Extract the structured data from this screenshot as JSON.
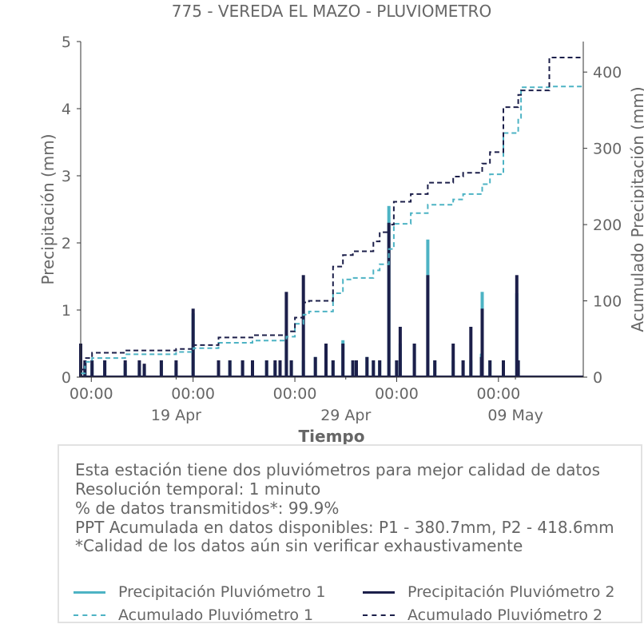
{
  "chart_data": {
    "type": "bar",
    "title": "775 - VEREDA EL MAZO - PLUVIOMETRO",
    "xlabel": "Tiempo",
    "ylabel": "Precipitación (mm)",
    "ylabel_right": "Acumulado Precipitación (mm)",
    "x_range": [
      "2025-04-13T09:00",
      "2025-05-13T00:00"
    ],
    "ylim": [
      0,
      5
    ],
    "ylim_right": [
      0,
      440
    ],
    "y_ticks": [
      0,
      1,
      2,
      3,
      4,
      5
    ],
    "y_ticks_right": [
      0,
      100,
      200,
      300,
      400
    ],
    "x_ticks_major": [
      {
        "x": "2025-04-14T00:00",
        "label": "00:00"
      },
      {
        "x": "2025-04-20T00:00",
        "label": "00:00"
      },
      {
        "x": "2025-04-26T00:00",
        "label": "00:00"
      },
      {
        "x": "2025-05-02T00:00",
        "label": "00:00"
      },
      {
        "x": "2025-05-08T00:00",
        "label": "00:00"
      }
    ],
    "x_ticks_minor": [
      {
        "x": "2025-04-19T00:00",
        "label": "19 Apr"
      },
      {
        "x": "2025-04-29T00:00",
        "label": "29 Apr"
      },
      {
        "x": "2025-05-09T00:00",
        "label": "09 May"
      }
    ],
    "grid": false,
    "legend_position": "bottom",
    "series": [
      {
        "name": "Precipitación Pluviómetro 1",
        "kind": "bar",
        "color": "#4db3c4",
        "x": [
          "2025-04-13T09:00",
          "2025-04-13T15:00",
          "2025-04-14T01:00",
          "2025-04-14T19:00",
          "2025-04-16T00:00",
          "2025-04-16T20:00",
          "2025-04-17T03:00",
          "2025-04-18T03:00",
          "2025-04-19T00:00",
          "2025-04-20T00:00",
          "2025-04-21T12:00",
          "2025-04-22T04:00",
          "2025-04-22T22:00",
          "2025-04-23T12:00",
          "2025-04-24T08:00",
          "2025-04-24T20:00",
          "2025-04-25T03:00",
          "2025-04-25T12:00",
          "2025-04-25T19:00",
          "2025-04-26T12:00",
          "2025-04-27T05:00",
          "2025-04-27T20:00",
          "2025-04-28T06:00",
          "2025-04-28T20:00",
          "2025-04-29T10:00",
          "2025-04-29T15:00",
          "2025-04-30T06:00",
          "2025-04-30T15:00",
          "2025-05-01T00:00",
          "2025-05-01T13:00",
          "2025-05-02T00:00",
          "2025-05-02T05:00",
          "2025-05-03T01:00",
          "2025-05-03T20:00",
          "2025-05-04T06:00",
          "2025-05-05T08:00",
          "2025-05-05T22:00",
          "2025-05-06T09:00",
          "2025-05-07T00:00",
          "2025-05-07T01:00",
          "2025-05-07T12:00",
          "2025-05-08T07:00",
          "2025-05-09T02:00",
          "2025-05-09T04:00"
        ],
        "values": [
          0.3,
          0.2,
          0.2,
          0.25,
          0.2,
          0.2,
          0.15,
          0.25,
          0.2,
          0.95,
          0.25,
          0.25,
          0.25,
          0.25,
          0.25,
          0.2,
          0.2,
          0.7,
          0.25,
          0.25,
          0.3,
          0.5,
          0.25,
          0.55,
          0.25,
          0.25,
          0.3,
          0.25,
          0.25,
          2.55,
          0.25,
          0.5,
          0.5,
          2.05,
          0.25,
          0.25,
          0.25,
          0.25,
          0.35,
          1.27,
          0.25,
          0.25,
          1.25,
          0.25
        ]
      },
      {
        "name": "Precipitación Pluviómetro 2",
        "kind": "bar",
        "color": "#1c1f4a",
        "x": [
          "2025-04-13T09:00",
          "2025-04-13T15:00",
          "2025-04-14T01:00",
          "2025-04-14T19:00",
          "2025-04-16T00:00",
          "2025-04-16T20:00",
          "2025-04-17T03:00",
          "2025-04-18T03:00",
          "2025-04-19T00:00",
          "2025-04-20T00:00",
          "2025-04-21T12:00",
          "2025-04-22T04:00",
          "2025-04-22T22:00",
          "2025-04-23T12:00",
          "2025-04-24T08:00",
          "2025-04-24T20:00",
          "2025-04-25T03:00",
          "2025-04-25T12:00",
          "2025-04-25T19:00",
          "2025-04-26T12:00",
          "2025-04-27T05:00",
          "2025-04-27T20:00",
          "2025-04-28T06:00",
          "2025-04-28T20:00",
          "2025-04-29T10:00",
          "2025-04-29T15:00",
          "2025-04-30T06:00",
          "2025-04-30T15:00",
          "2025-05-01T00:00",
          "2025-05-01T13:00",
          "2025-05-02T00:00",
          "2025-05-02T05:00",
          "2025-05-03T01:00",
          "2025-05-03T20:00",
          "2025-05-04T06:00",
          "2025-05-05T08:00",
          "2025-05-05T22:00",
          "2025-05-06T09:00",
          "2025-05-07T00:00",
          "2025-05-07T01:00",
          "2025-05-07T12:00",
          "2025-05-08T07:00",
          "2025-05-09T02:00",
          "2025-05-09T04:00"
        ],
        "values": [
          0.5,
          0.25,
          0.25,
          0.25,
          0.25,
          0.25,
          0.2,
          0.25,
          0.25,
          1.02,
          0.25,
          0.25,
          0.25,
          0.25,
          0.25,
          0.25,
          0.25,
          1.27,
          0.25,
          1.52,
          0.3,
          0.5,
          0.25,
          0.5,
          0.25,
          0.25,
          0.3,
          0.25,
          0.25,
          2.3,
          0.25,
          0.75,
          0.5,
          1.52,
          0.25,
          0.5,
          0.25,
          0.75,
          0.3,
          1.02,
          0.25,
          0.25,
          1.52,
          0.25
        ]
      },
      {
        "name": "Acumulado Pluviómetro 1",
        "kind": "step",
        "axis": "right",
        "color": "#4db3c4",
        "x": [
          "2025-04-13T09:00",
          "2025-04-13T15:00",
          "2025-04-14T01:00",
          "2025-04-16T00:00",
          "2025-04-19T00:00",
          "2025-04-20T00:00",
          "2025-04-21T12:00",
          "2025-04-23T12:00",
          "2025-04-25T12:00",
          "2025-04-26T00:00",
          "2025-04-26T12:00",
          "2025-04-26T20:00",
          "2025-04-28T06:00",
          "2025-04-28T20:00",
          "2025-04-29T10:00",
          "2025-04-30T15:00",
          "2025-05-01T00:00",
          "2025-05-01T13:00",
          "2025-05-01T20:00",
          "2025-05-02T20:00",
          "2025-05-03T20:00",
          "2025-05-05T08:00",
          "2025-05-05T22:00",
          "2025-05-07T01:00",
          "2025-05-07T12:00",
          "2025-05-08T07:00",
          "2025-05-09T04:00",
          "2025-05-09T08:00",
          "2025-05-11T00:00",
          "2025-05-13T00:00"
        ],
        "values": [
          5,
          20,
          25,
          30,
          33,
          38,
          45,
          48,
          53,
          70,
          82,
          86,
          110,
          128,
          130,
          140,
          148,
          168,
          201,
          215,
          226,
          233,
          240,
          253,
          266,
          320,
          340,
          380,
          381,
          381
        ]
      },
      {
        "name": "Acumulado Pluviómetro 2",
        "kind": "step",
        "axis": "right",
        "color": "#1c1f4a",
        "x": [
          "2025-04-13T09:00",
          "2025-04-13T15:00",
          "2025-04-14T01:00",
          "2025-04-16T00:00",
          "2025-04-19T00:00",
          "2025-04-20T00:00",
          "2025-04-21T12:00",
          "2025-04-23T12:00",
          "2025-04-25T12:00",
          "2025-04-26T00:00",
          "2025-04-26T12:00",
          "2025-04-26T20:00",
          "2025-04-28T06:00",
          "2025-04-28T20:00",
          "2025-04-29T10:00",
          "2025-04-30T15:00",
          "2025-05-01T00:00",
          "2025-05-01T13:00",
          "2025-05-01T20:00",
          "2025-05-02T20:00",
          "2025-05-03T20:00",
          "2025-05-05T08:00",
          "2025-05-05T22:00",
          "2025-05-07T01:00",
          "2025-05-07T12:00",
          "2025-05-08T07:00",
          "2025-05-09T04:00",
          "2025-05-09T08:00",
          "2025-05-11T00:00",
          "2025-05-13T00:00"
        ],
        "values": [
          10,
          25,
          32,
          35,
          37,
          42,
          52,
          55,
          60,
          78,
          98,
          100,
          145,
          160,
          165,
          178,
          190,
          200,
          230,
          240,
          255,
          263,
          268,
          280,
          295,
          354,
          370,
          376,
          419,
          419
        ]
      }
    ]
  },
  "info": {
    "lines": [
      "Esta estación tiene dos pluviómetros para mejor calidad de datos",
      "Resolución temporal: 1 minuto",
      "% de datos transmitidos*: 99.9%",
      "PPT Acumulada en datos disponibles: P1 - 380.7mm, P2 - 418.6mm",
      "*Calidad de los datos aún sin verificar exhaustivamente"
    ]
  },
  "legend": [
    {
      "label": "Precipitación Pluviómetro 1",
      "color": "#4db3c4",
      "style": "solid"
    },
    {
      "label": "Precipitación Pluviómetro 2",
      "color": "#1c1f4a",
      "style": "solid"
    },
    {
      "label": "Acumulado Pluviómetro 1",
      "color": "#4db3c4",
      "style": "dashed"
    },
    {
      "label": "Acumulado Pluviómetro 2",
      "color": "#1c1f4a",
      "style": "dashed"
    }
  ]
}
